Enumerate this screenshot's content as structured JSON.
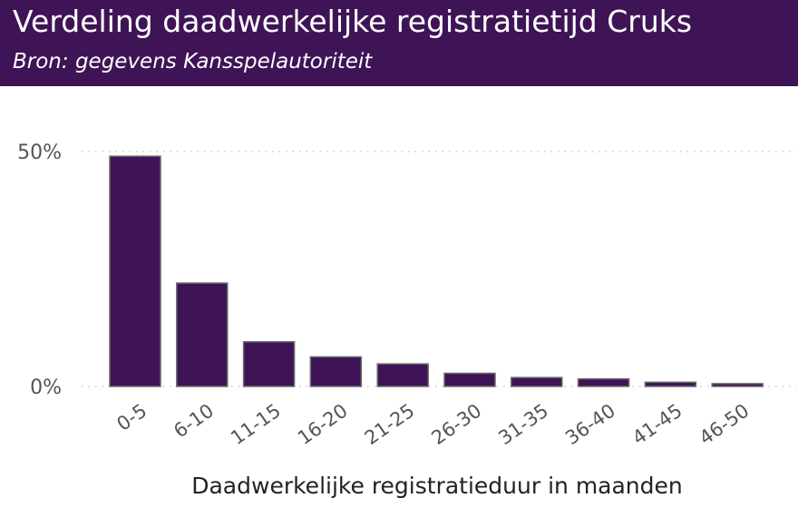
{
  "header": {
    "title": "Verdeling daadwerkelijke registratietijd Cruks",
    "subtitle": "Bron: gegevens Kansspelautoriteit"
  },
  "colors": {
    "header_bg": "#3f1457",
    "bar_fill": "#3f1457",
    "bar_stroke": "#6b6b6b",
    "grid": "#c8c8c8"
  },
  "chart_data": {
    "type": "bar",
    "title": "Verdeling daadwerkelijke registratietijd Cruks",
    "subtitle": "Bron: gegevens Kansspelautoriteit",
    "xlabel": "Daadwerkelijke registratieduur in maanden",
    "ylabel": "",
    "categories": [
      "0-5",
      "6-10",
      "11-15",
      "16-20",
      "21-25",
      "26-30",
      "31-35",
      "36-40",
      "41-45",
      "46-50"
    ],
    "values": [
      49,
      22,
      9.5,
      6.3,
      4.8,
      2.8,
      1.9,
      1.6,
      0.9,
      0.6
    ],
    "ylim": [
      0,
      50
    ],
    "yticks": [
      {
        "value": 0,
        "label": "0%"
      },
      {
        "value": 50,
        "label": "50%"
      }
    ],
    "grid": "horizontal dotted",
    "legend": "none"
  }
}
